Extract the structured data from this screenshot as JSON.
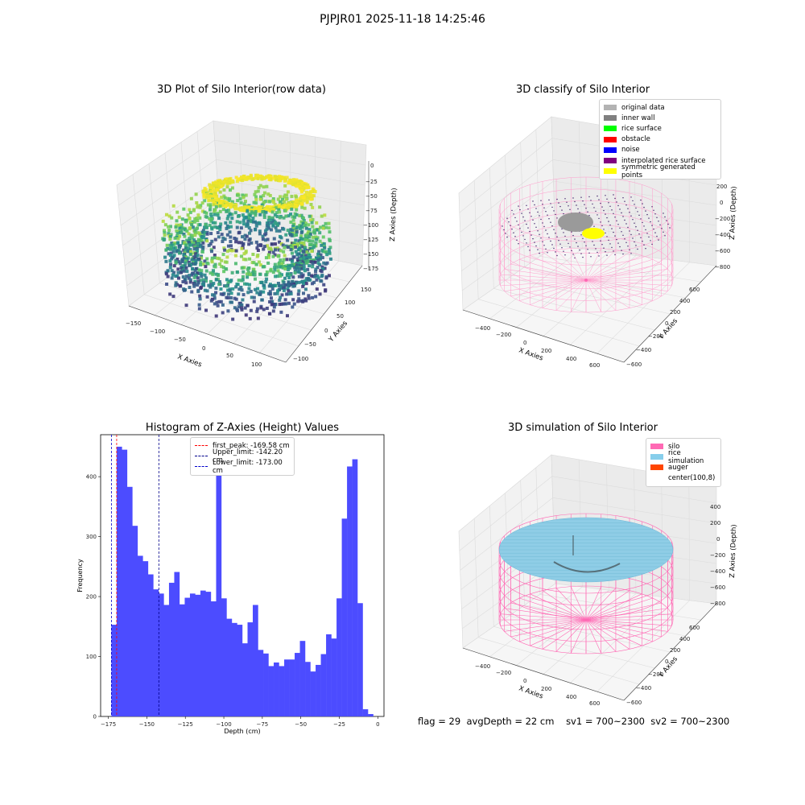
{
  "figure_title": "PJPJR01 2025-11-18 14:25:46",
  "status": {
    "flag": "flag = 29",
    "avg_depth": "avgDepth = 22 cm",
    "sv1": "sv1 = 700~2300",
    "sv2": "sv2 = 700~2300"
  },
  "chart_data": [
    {
      "type": "scatter",
      "title": "3D Plot of Silo Interior(row data)",
      "xlabel": "X Axies",
      "ylabel": "Y Axies",
      "zlabel": "Z Axies (Depth)",
      "x_ticks": [
        "−150",
        "−100",
        "−50",
        "0",
        "50",
        "100"
      ],
      "y_ticks": [
        "−100",
        "−50",
        "0",
        "50",
        "100",
        "150"
      ],
      "z_ticks": [
        "0",
        "−25",
        "−50",
        "−75",
        "−100",
        "−125",
        "−150",
        "−175"
      ],
      "colormap": "viridis",
      "grid": true
    },
    {
      "type": "scatter",
      "title": "3D classify of Silo Interior",
      "xlabel": "X Axies",
      "ylabel": "Y Axies",
      "zlabel": "Z Axies (Depth)",
      "x_ticks": [
        "−400",
        "−200",
        "0",
        "200",
        "400",
        "600"
      ],
      "y_ticks": [
        "−600",
        "−400",
        "−200",
        "0",
        "200",
        "400",
        "600"
      ],
      "z_ticks": [
        "200",
        "0",
        "−200",
        "−400",
        "−600",
        "−800"
      ],
      "legend": [
        {
          "label": "original data",
          "color": "#b3b3b3"
        },
        {
          "label": "inner wall",
          "color": "#808080"
        },
        {
          "label": "rice surface",
          "color": "#00ff00"
        },
        {
          "label": "obstacle",
          "color": "#ff0000"
        },
        {
          "label": "noise",
          "color": "#0000ff"
        },
        {
          "label": "interpolated rice surface",
          "color": "#800080"
        },
        {
          "label": "symmetric generated points",
          "color": "#ffff00"
        }
      ],
      "legend_loc": "upper-right",
      "grid": true
    },
    {
      "type": "bar",
      "title": "Histogram of Z-Axies (Height) Values",
      "xlabel": "Depth (cm)",
      "ylabel": "Frequency",
      "xlim": [
        -180,
        4
      ],
      "ylim": [
        0,
        470
      ],
      "x_ticks": [
        -175,
        -150,
        -125,
        -100,
        -75,
        -50,
        -25,
        0
      ],
      "y_ticks": [
        0,
        100,
        200,
        300,
        400
      ],
      "bin_start": -173,
      "bin_width": 3.4,
      "values": [
        153,
        450,
        445,
        383,
        318,
        268,
        259,
        237,
        212,
        205,
        186,
        223,
        241,
        187,
        198,
        205,
        203,
        210,
        208,
        192,
        435,
        197,
        163,
        156,
        153,
        122,
        157,
        186,
        111,
        105,
        84,
        90,
        84,
        95,
        95,
        106,
        126,
        91,
        75,
        86,
        104,
        137,
        130,
        197,
        330,
        417,
        429,
        189,
        12,
        4
      ],
      "bar_color": "#4c4cff",
      "vlines": [
        {
          "label": "first_peak: -169.58 cm",
          "x": -169.58,
          "color": "#ff0000"
        },
        {
          "label": "Upper_limit: -142.20 cm",
          "x": -142.2,
          "color": "#00008b"
        },
        {
          "label": "Lower_limit: -173.00 cm",
          "x": -173.0,
          "color": "#0000cd"
        }
      ],
      "legend_loc": "upper-center"
    },
    {
      "type": "scatter",
      "title": "3D simulation of Silo Interior",
      "xlabel": "X Axies",
      "ylabel": "Y Axies",
      "zlabel": "Z Axies (Depth)",
      "x_ticks": [
        "−400",
        "−200",
        "0",
        "200",
        "400",
        "600"
      ],
      "y_ticks": [
        "−600",
        "−400",
        "−200",
        "0",
        "200",
        "400",
        "600"
      ],
      "z_ticks": [
        "400",
        "200",
        "0",
        "−200",
        "−400",
        "−600",
        "−800"
      ],
      "legend": [
        {
          "label": "silo",
          "color": "#ff69b4"
        },
        {
          "label": "rice simulation",
          "color": "#87ceeb"
        },
        {
          "label": "auger",
          "color": "#ff4500"
        },
        {
          "label": "center(100,8)",
          "color": "#ffffff"
        }
      ],
      "legend_loc": "upper-right",
      "grid": true
    }
  ]
}
